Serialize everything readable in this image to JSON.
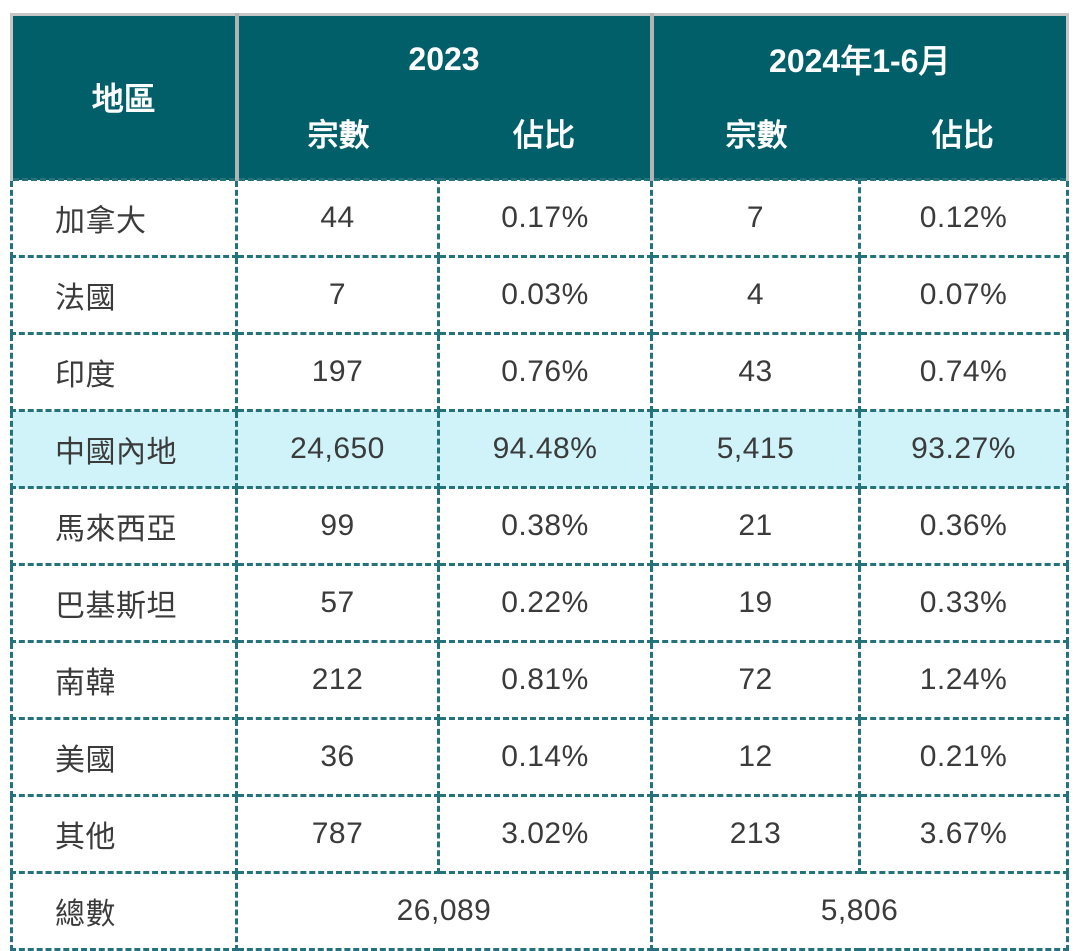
{
  "table": {
    "header": {
      "region": "地區",
      "group_2023": "2023",
      "group_2024": "2024年1-6月",
      "count_label": "宗數",
      "share_label": "佔比"
    },
    "rows": [
      {
        "region": "加拿大",
        "c2023": "44",
        "s2023": "0.17%",
        "c2024": "7",
        "s2024": "0.12%",
        "highlight": false
      },
      {
        "region": "法國",
        "c2023": "7",
        "s2023": "0.03%",
        "c2024": "4",
        "s2024": "0.07%",
        "highlight": false
      },
      {
        "region": "印度",
        "c2023": "197",
        "s2023": "0.76%",
        "c2024": "43",
        "s2024": "0.74%",
        "highlight": false
      },
      {
        "region": "中國內地",
        "c2023": "24,650",
        "s2023": "94.48%",
        "c2024": "5,415",
        "s2024": "93.27%",
        "highlight": true
      },
      {
        "region": "馬來西亞",
        "c2023": "99",
        "s2023": "0.38%",
        "c2024": "21",
        "s2024": "0.36%",
        "highlight": false
      },
      {
        "region": "巴基斯坦",
        "c2023": "57",
        "s2023": "0.22%",
        "c2024": "19",
        "s2024": "0.33%",
        "highlight": false
      },
      {
        "region": "南韓",
        "c2023": "212",
        "s2023": "0.81%",
        "c2024": "72",
        "s2024": "1.24%",
        "highlight": false
      },
      {
        "region": "美國",
        "c2023": "36",
        "s2023": "0.14%",
        "c2024": "12",
        "s2024": "0.21%",
        "highlight": false
      },
      {
        "region": "其他",
        "c2023": "787",
        "s2023": "3.02%",
        "c2024": "213",
        "s2024": "3.67%",
        "highlight": false
      }
    ],
    "total": {
      "label": "總數",
      "v2023": "26,089",
      "v2024": "5,806"
    }
  },
  "colors": {
    "header_background": "#005f69",
    "header_text": "#ffffff",
    "dashed_border": "#23727c",
    "highlight_row": "#cff3f9",
    "body_text": "#3b3b3b",
    "header_separator": "#b3b3b3"
  }
}
